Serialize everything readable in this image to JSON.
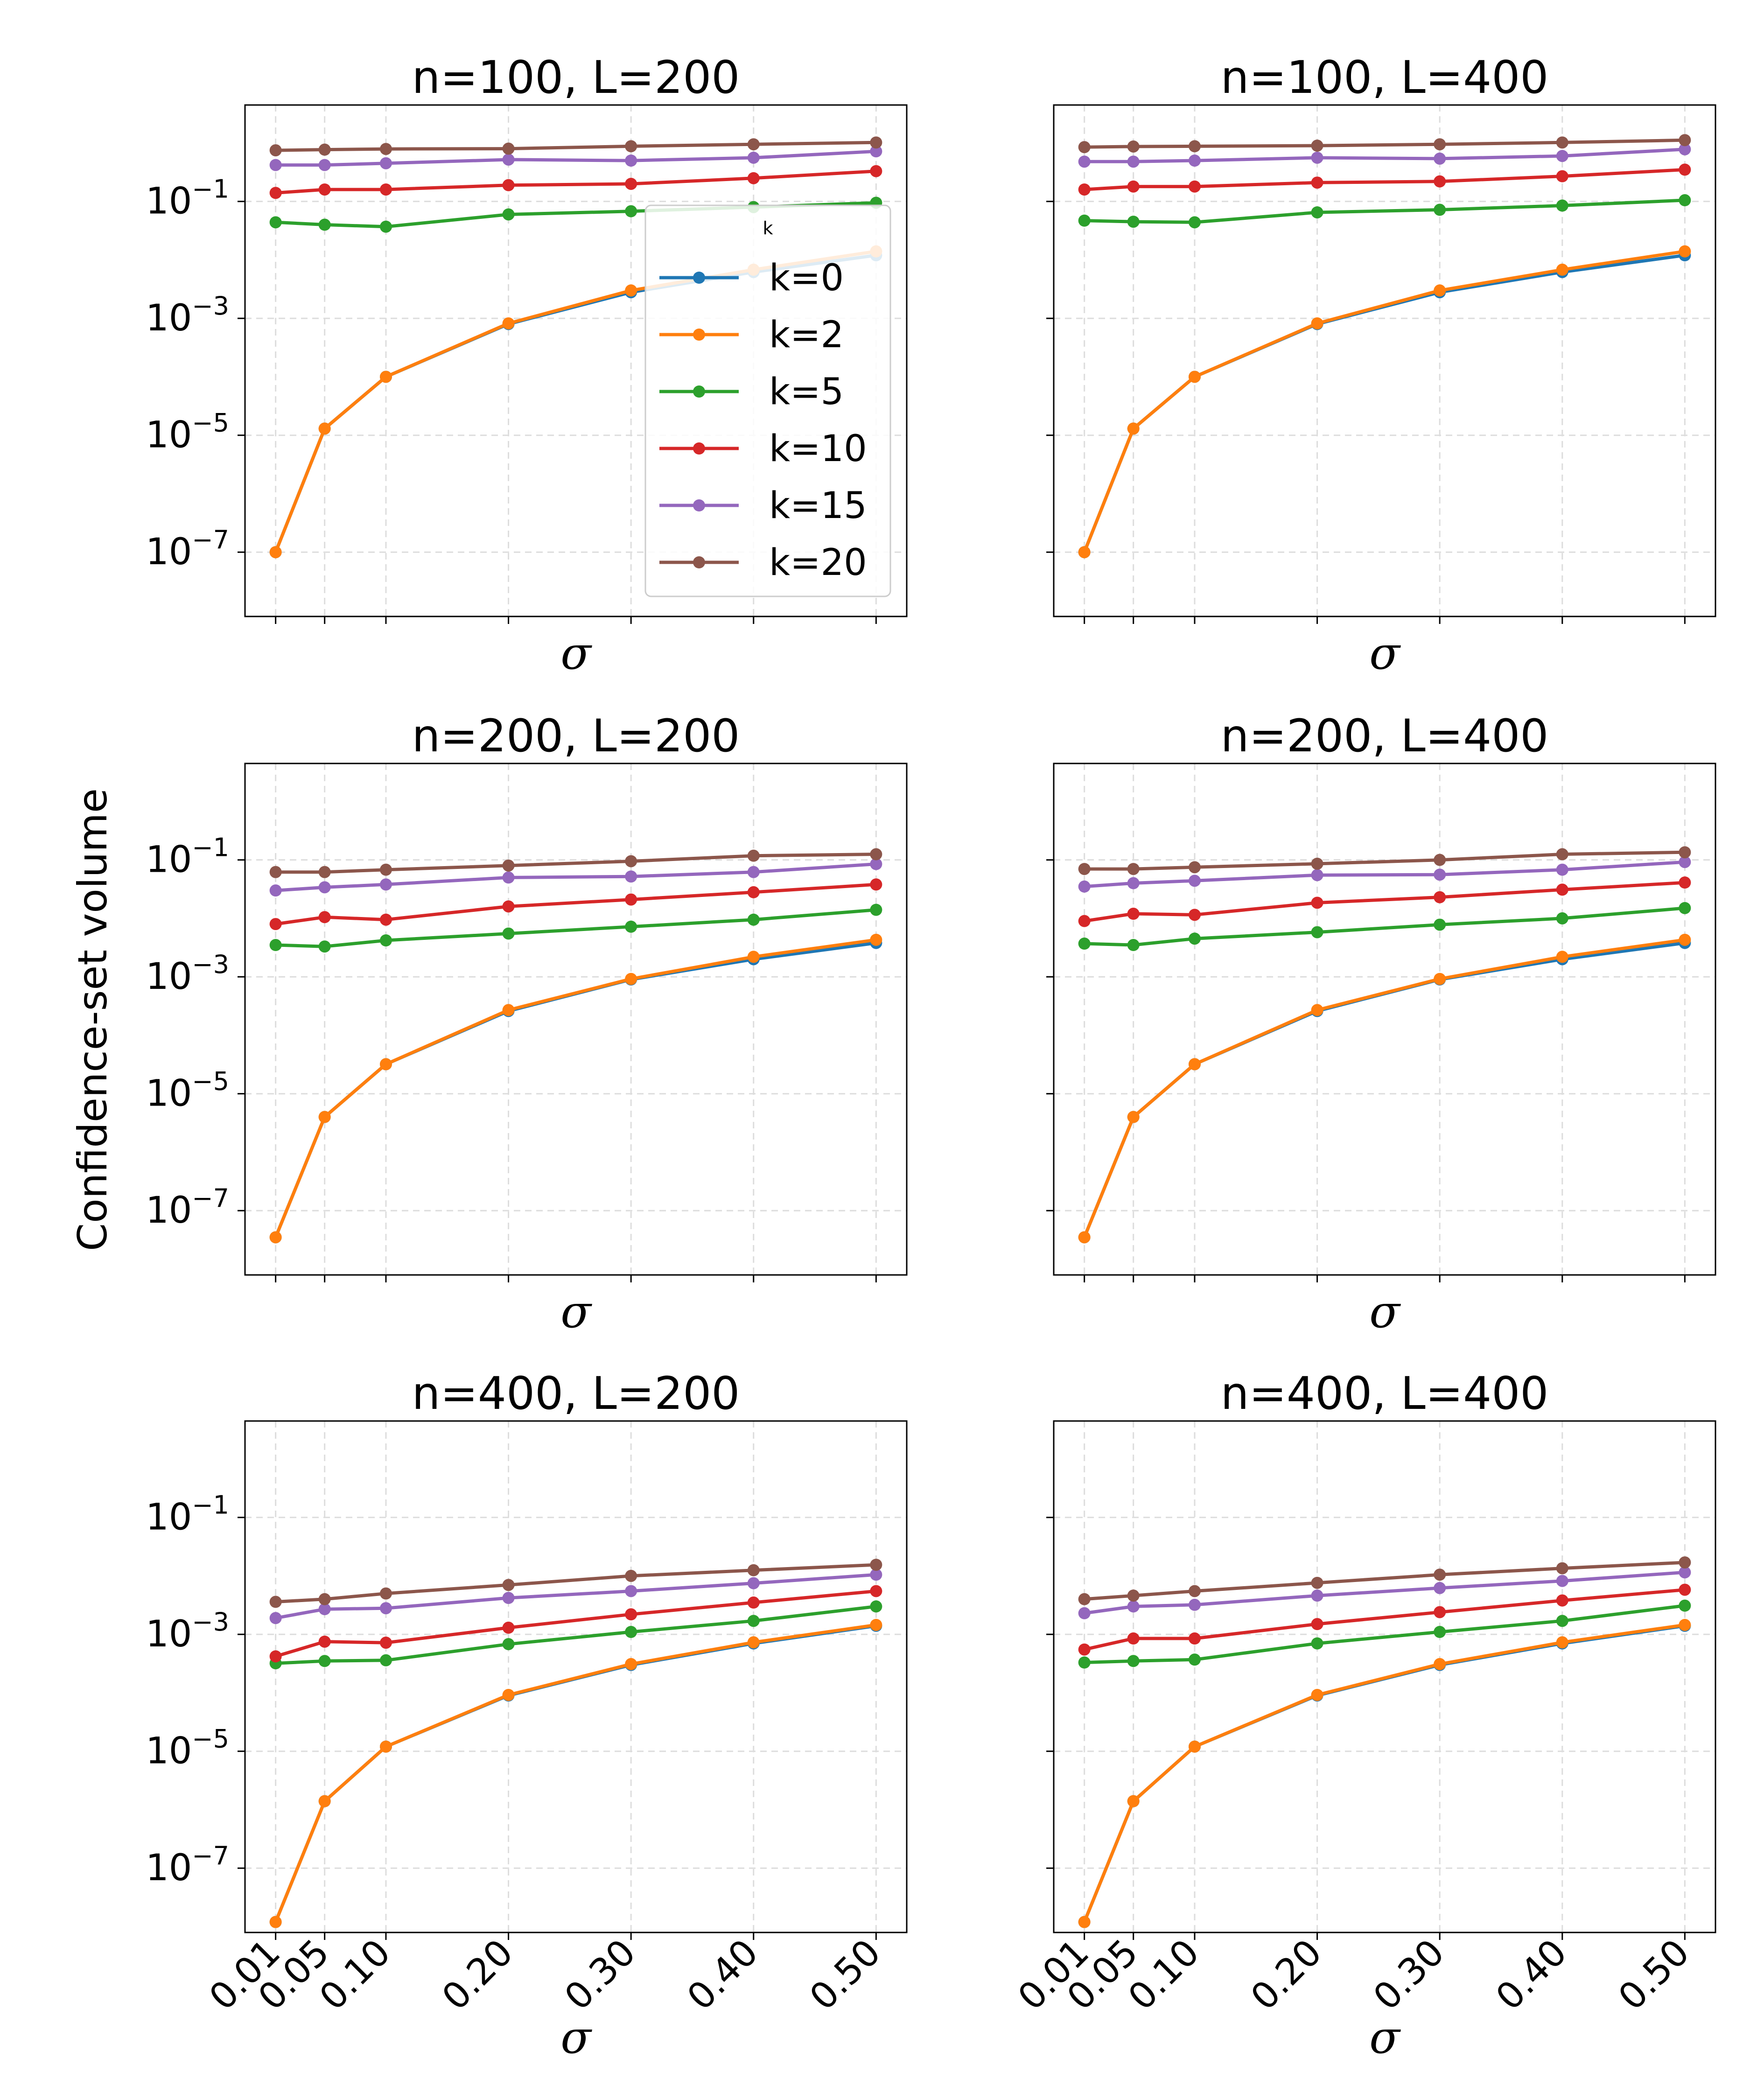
{
  "figure": {
    "ylabel": "Confidence-set volume",
    "legend_title": "k"
  },
  "chart_data": [
    {
      "type": "line",
      "title": "n=100, L=200",
      "xlabel": "σ",
      "ylabel": "Confidence-set volume",
      "xscale": "linear",
      "yscale": "log",
      "xlim": [
        -0.015,
        0.525
      ],
      "ylim_log10": [
        -8.1,
        0.65
      ],
      "x": [
        0.01,
        0.05,
        0.1,
        0.2,
        0.3,
        0.4,
        0.5
      ],
      "xticklabels": [
        "0.01",
        "0.05",
        "0.10",
        "0.20",
        "0.30",
        "0.40",
        "0.50"
      ],
      "yticklabels": [
        "10^-7",
        "10^-5",
        "10^-3",
        "10^-1"
      ],
      "legend_location": "center-right",
      "series": [
        {
          "name": "k=0",
          "values": [
            1e-07,
            1.3e-05,
            0.0001,
            0.0008,
            0.0028,
            0.0062,
            0.012
          ]
        },
        {
          "name": "k=2",
          "values": [
            1e-07,
            1.3e-05,
            0.0001,
            0.00082,
            0.003,
            0.0068,
            0.014
          ]
        },
        {
          "name": "k=5",
          "values": [
            0.044,
            0.04,
            0.037,
            0.06,
            0.068,
            0.08,
            0.095
          ]
        },
        {
          "name": "k=10",
          "values": [
            0.14,
            0.16,
            0.16,
            0.19,
            0.2,
            0.25,
            0.33
          ]
        },
        {
          "name": "k=15",
          "values": [
            0.42,
            0.42,
            0.45,
            0.52,
            0.5,
            0.56,
            0.72
          ]
        },
        {
          "name": "k=20",
          "values": [
            0.75,
            0.77,
            0.79,
            0.8,
            0.88,
            0.95,
            1.02
          ]
        }
      ]
    },
    {
      "type": "line",
      "title": "n=100, L=400",
      "xlabel": "σ",
      "ylabel": "",
      "xscale": "linear",
      "yscale": "log",
      "xlim": [
        -0.015,
        0.525
      ],
      "ylim_log10": [
        -8.1,
        0.65
      ],
      "x": [
        0.01,
        0.05,
        0.1,
        0.2,
        0.3,
        0.4,
        0.5
      ],
      "xticklabels": [
        "0.01",
        "0.05",
        "0.10",
        "0.20",
        "0.30",
        "0.40",
        "0.50"
      ],
      "yticklabels": [],
      "series": [
        {
          "name": "k=0",
          "values": [
            1e-07,
            1.3e-05,
            0.0001,
            0.0008,
            0.0028,
            0.0062,
            0.012
          ]
        },
        {
          "name": "k=2",
          "values": [
            1e-07,
            1.3e-05,
            0.0001,
            0.00082,
            0.003,
            0.0068,
            0.014
          ]
        },
        {
          "name": "k=5",
          "values": [
            0.047,
            0.045,
            0.044,
            0.065,
            0.072,
            0.085,
            0.105
          ]
        },
        {
          "name": "k=10",
          "values": [
            0.16,
            0.18,
            0.18,
            0.21,
            0.22,
            0.27,
            0.35
          ]
        },
        {
          "name": "k=15",
          "values": [
            0.48,
            0.48,
            0.5,
            0.56,
            0.54,
            0.6,
            0.78
          ]
        },
        {
          "name": "k=20",
          "values": [
            0.85,
            0.87,
            0.88,
            0.9,
            0.95,
            1.02,
            1.12
          ]
        }
      ]
    },
    {
      "type": "line",
      "title": "n=200, L=200",
      "xlabel": "σ",
      "ylabel": "Confidence-set volume",
      "xscale": "linear",
      "yscale": "log",
      "xlim": [
        -0.015,
        0.525
      ],
      "ylim_log10": [
        -8.1,
        0.65
      ],
      "x": [
        0.01,
        0.05,
        0.1,
        0.2,
        0.3,
        0.4,
        0.5
      ],
      "xticklabels": [
        "0.01",
        "0.05",
        "0.10",
        "0.20",
        "0.30",
        "0.40",
        "0.50"
      ],
      "yticklabels": [
        "10^-7",
        "10^-5",
        "10^-3",
        "10^-1"
      ],
      "series": [
        {
          "name": "k=0",
          "values": [
            3.5e-08,
            4e-06,
            3.2e-05,
            0.00026,
            0.0009,
            0.002,
            0.0038
          ]
        },
        {
          "name": "k=2",
          "values": [
            3.5e-08,
            4e-06,
            3.2e-05,
            0.00027,
            0.00092,
            0.0022,
            0.0043
          ]
        },
        {
          "name": "k=5",
          "values": [
            0.0035,
            0.0033,
            0.0042,
            0.0055,
            0.0072,
            0.0095,
            0.014
          ]
        },
        {
          "name": "k=10",
          "values": [
            0.008,
            0.0105,
            0.0095,
            0.016,
            0.021,
            0.028,
            0.038
          ]
        },
        {
          "name": "k=15",
          "values": [
            0.03,
            0.034,
            0.038,
            0.05,
            0.052,
            0.062,
            0.085
          ]
        },
        {
          "name": "k=20",
          "values": [
            0.062,
            0.062,
            0.068,
            0.08,
            0.095,
            0.118,
            0.125
          ]
        }
      ]
    },
    {
      "type": "line",
      "title": "n=200, L=400",
      "xlabel": "σ",
      "ylabel": "",
      "xscale": "linear",
      "yscale": "log",
      "xlim": [
        -0.015,
        0.525
      ],
      "ylim_log10": [
        -8.1,
        0.65
      ],
      "x": [
        0.01,
        0.05,
        0.1,
        0.2,
        0.3,
        0.4,
        0.5
      ],
      "xticklabels": [
        "0.01",
        "0.05",
        "0.10",
        "0.20",
        "0.30",
        "0.40",
        "0.50"
      ],
      "yticklabels": [],
      "series": [
        {
          "name": "k=0",
          "values": [
            3.5e-08,
            4e-06,
            3.2e-05,
            0.00026,
            0.0009,
            0.002,
            0.0038
          ]
        },
        {
          "name": "k=2",
          "values": [
            3.5e-08,
            4e-06,
            3.2e-05,
            0.00027,
            0.00092,
            0.0022,
            0.0043
          ]
        },
        {
          "name": "k=5",
          "values": [
            0.0037,
            0.0035,
            0.0045,
            0.0058,
            0.0078,
            0.01,
            0.015
          ]
        },
        {
          "name": "k=10",
          "values": [
            0.009,
            0.012,
            0.0115,
            0.0185,
            0.023,
            0.031,
            0.041
          ]
        },
        {
          "name": "k=15",
          "values": [
            0.035,
            0.04,
            0.044,
            0.055,
            0.056,
            0.068,
            0.092
          ]
        },
        {
          "name": "k=20",
          "values": [
            0.07,
            0.07,
            0.075,
            0.086,
            0.1,
            0.125,
            0.135
          ]
        }
      ]
    },
    {
      "type": "line",
      "title": "n=400, L=200",
      "xlabel": "σ",
      "ylabel": "Confidence-set volume",
      "xscale": "linear",
      "yscale": "log",
      "xlim": [
        -0.015,
        0.525
      ],
      "ylim_log10": [
        -8.1,
        0.65
      ],
      "x": [
        0.01,
        0.05,
        0.1,
        0.2,
        0.3,
        0.4,
        0.5
      ],
      "xticklabels": [
        "0.01",
        "0.05",
        "0.10",
        "0.20",
        "0.30",
        "0.40",
        "0.50"
      ],
      "yticklabels": [
        "10^-7",
        "10^-5",
        "10^-3",
        "10^-1"
      ],
      "series": [
        {
          "name": "k=0",
          "values": [
            1.2e-08,
            1.4e-06,
            1.2e-05,
            9e-05,
            0.0003,
            0.0007,
            0.0014
          ]
        },
        {
          "name": "k=2",
          "values": [
            1.2e-08,
            1.4e-06,
            1.2e-05,
            9.2e-05,
            0.00031,
            0.00073,
            0.00145
          ]
        },
        {
          "name": "k=5",
          "values": [
            0.00032,
            0.00035,
            0.00036,
            0.00068,
            0.0011,
            0.0017,
            0.003
          ]
        },
        {
          "name": "k=10",
          "values": [
            0.00042,
            0.00075,
            0.00072,
            0.0013,
            0.0022,
            0.0035,
            0.0055
          ]
        },
        {
          "name": "k=15",
          "values": [
            0.0019,
            0.0027,
            0.0028,
            0.0042,
            0.0055,
            0.0075,
            0.0105
          ]
        },
        {
          "name": "k=20",
          "values": [
            0.0036,
            0.004,
            0.005,
            0.007,
            0.01,
            0.0125,
            0.0155
          ]
        }
      ]
    },
    {
      "type": "line",
      "title": "n=400, L=400",
      "xlabel": "σ",
      "ylabel": "",
      "xscale": "linear",
      "yscale": "log",
      "xlim": [
        -0.015,
        0.525
      ],
      "ylim_log10": [
        -8.1,
        0.65
      ],
      "x": [
        0.01,
        0.05,
        0.1,
        0.2,
        0.3,
        0.4,
        0.5
      ],
      "xticklabels": [
        "0.01",
        "0.05",
        "0.10",
        "0.20",
        "0.30",
        "0.40",
        "0.50"
      ],
      "yticklabels": [],
      "series": [
        {
          "name": "k=0",
          "values": [
            1.2e-08,
            1.4e-06,
            1.2e-05,
            9e-05,
            0.0003,
            0.0007,
            0.0014
          ]
        },
        {
          "name": "k=2",
          "values": [
            1.2e-08,
            1.4e-06,
            1.2e-05,
            9.2e-05,
            0.00031,
            0.00073,
            0.00145
          ]
        },
        {
          "name": "k=5",
          "values": [
            0.00033,
            0.00035,
            0.00037,
            0.0007,
            0.0011,
            0.0017,
            0.0031
          ]
        },
        {
          "name": "k=10",
          "values": [
            0.00055,
            0.00085,
            0.00085,
            0.0015,
            0.0024,
            0.0038,
            0.0058
          ]
        },
        {
          "name": "k=15",
          "values": [
            0.0023,
            0.003,
            0.0032,
            0.0046,
            0.0062,
            0.0082,
            0.0115
          ]
        },
        {
          "name": "k=20",
          "values": [
            0.004,
            0.0046,
            0.0055,
            0.0076,
            0.0105,
            0.0135,
            0.017
          ]
        }
      ]
    }
  ],
  "colors": {
    "k=0": "#1f77b4",
    "k=2": "#ff7f0e",
    "k=5": "#2ca02c",
    "k=10": "#d62728",
    "k=15": "#9467bd",
    "k=20": "#8c564b",
    "grid": "#dddddd",
    "axes": "#000000"
  }
}
